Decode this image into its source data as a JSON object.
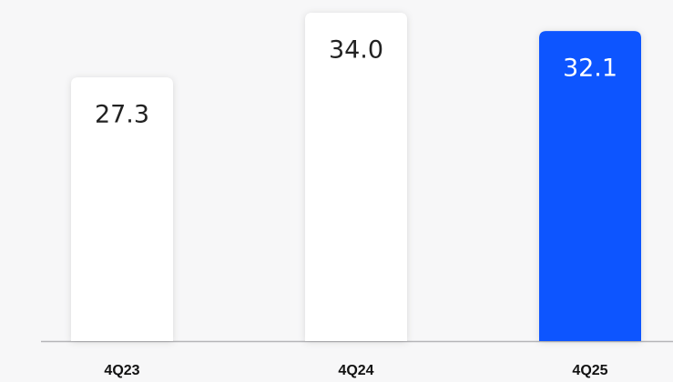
{
  "chart_data": {
    "type": "bar",
    "categories": [
      "4Q23",
      "4Q24",
      "4Q25"
    ],
    "values": [
      27.3,
      34.0,
      32.1
    ],
    "value_labels": [
      "27.3",
      "34.0",
      "32.1"
    ],
    "colors": [
      "#ffffff",
      "#ffffff",
      "#0a55ff"
    ]
  }
}
